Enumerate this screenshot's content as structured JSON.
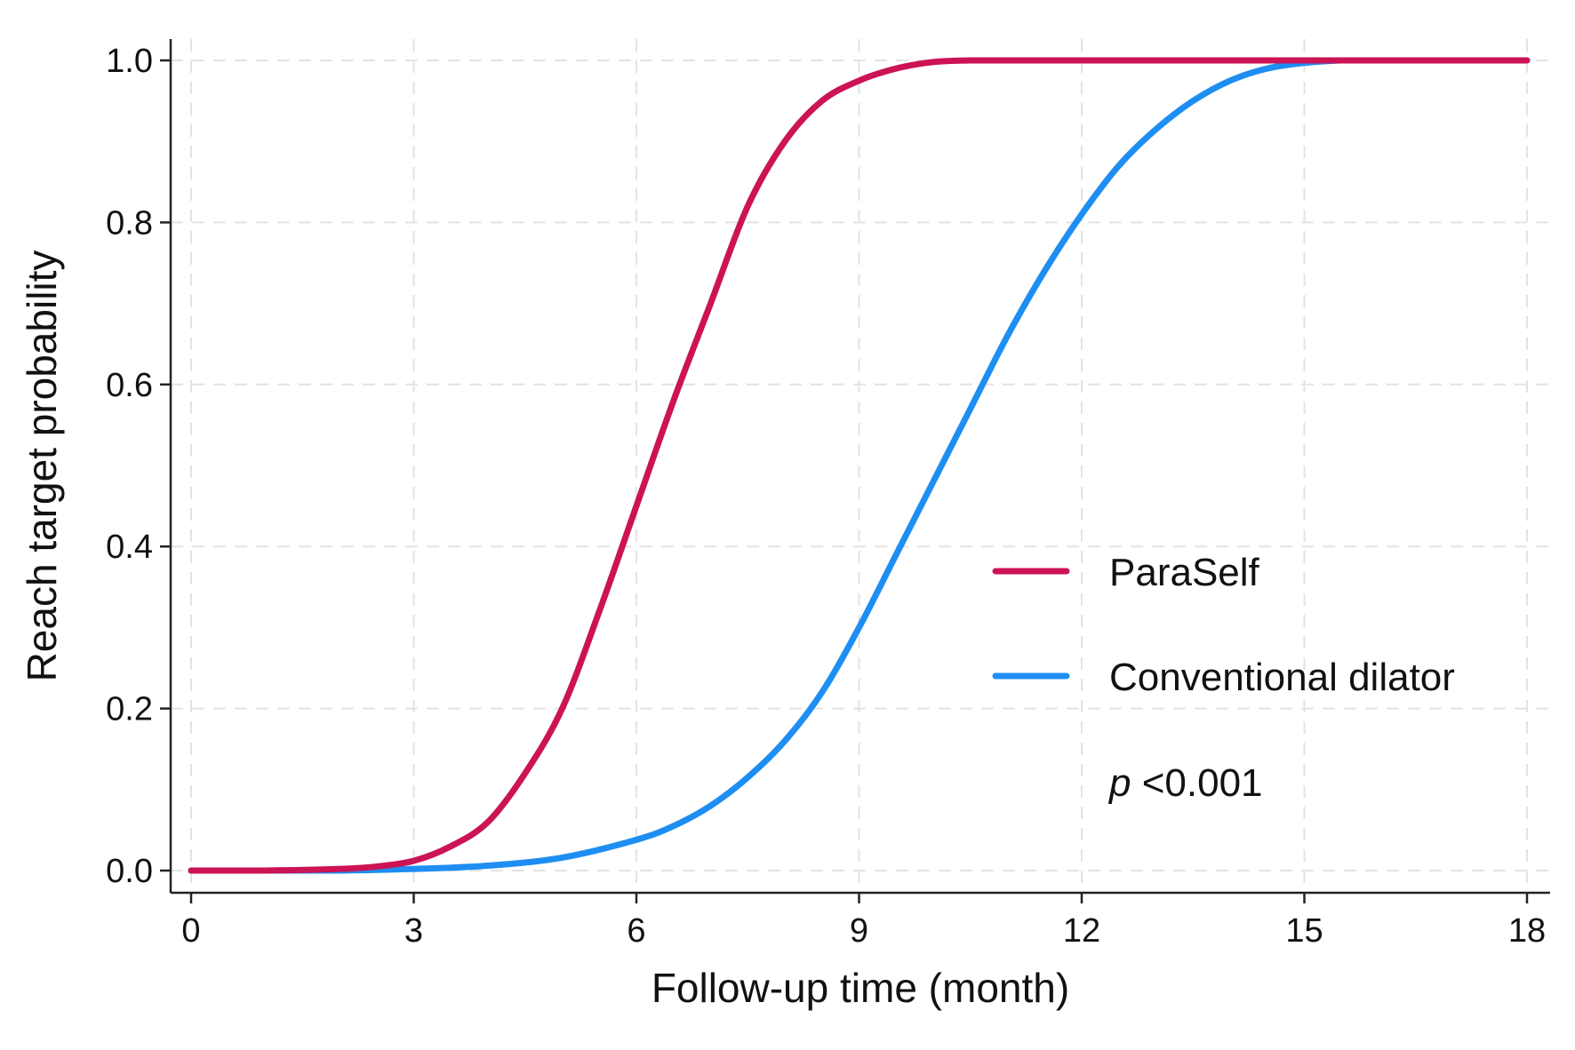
{
  "chart_data": {
    "type": "line",
    "title": "",
    "xlabel": "Follow-up time (month)",
    "ylabel": "Reach target probability",
    "xlim": [
      0,
      18
    ],
    "ylim": [
      0,
      1
    ],
    "x_ticks": [
      0,
      3,
      6,
      9,
      12,
      15,
      18
    ],
    "x_tick_labels": [
      "0",
      "3",
      "6",
      "9",
      "12",
      "15",
      "18"
    ],
    "y_ticks": [
      0,
      0.2,
      0.4,
      0.6,
      0.8,
      1.0
    ],
    "y_tick_labels": [
      "0.0",
      "0.2",
      "0.4",
      "0.6",
      "0.8",
      "1.0"
    ],
    "grid": true,
    "legend_position": "center-right",
    "annotation": {
      "italic": "p",
      "text": " <0.001"
    },
    "series": [
      {
        "name": "ParaSelf",
        "color": "#cc1355",
        "x": [
          0,
          1,
          2,
          2.5,
          3,
          3.5,
          4,
          4.5,
          5,
          5.5,
          6,
          6.5,
          7,
          7.5,
          8,
          8.5,
          9,
          9.5,
          10,
          10.5,
          11,
          12,
          13,
          14,
          15,
          16,
          17,
          18
        ],
        "y": [
          0,
          0,
          0.002,
          0.005,
          0.012,
          0.03,
          0.06,
          0.12,
          0.2,
          0.32,
          0.45,
          0.58,
          0.7,
          0.82,
          0.9,
          0.95,
          0.975,
          0.99,
          0.998,
          1.0,
          1.0,
          1.0,
          1.0,
          1.0,
          1.0,
          1.0,
          1.0,
          1.0
        ]
      },
      {
        "name": "Conventional dilator",
        "color": "#1e8ef2",
        "x": [
          0,
          1,
          2,
          3,
          4,
          5,
          6,
          6.5,
          7,
          7.5,
          8,
          8.5,
          9,
          9.5,
          10,
          10.5,
          11,
          11.5,
          12,
          12.5,
          13,
          13.5,
          14,
          14.5,
          15,
          15.5,
          16,
          17,
          18
        ],
        "y": [
          0,
          0,
          0,
          0.002,
          0.006,
          0.016,
          0.038,
          0.055,
          0.08,
          0.115,
          0.16,
          0.22,
          0.3,
          0.39,
          0.48,
          0.57,
          0.66,
          0.74,
          0.81,
          0.87,
          0.915,
          0.95,
          0.975,
          0.99,
          0.997,
          1.0,
          1.0,
          1.0,
          1.0
        ]
      }
    ]
  }
}
